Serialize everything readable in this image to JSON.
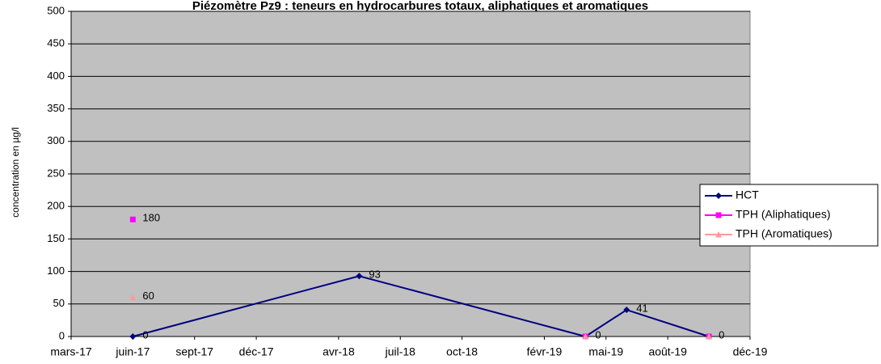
{
  "chart_data": {
    "type": "line",
    "title": "Piézomètre Pz9 : teneurs en hydrocarbures totaux, aliphatiques et aromatiques",
    "y_label": "concentration en µg/l",
    "x": [
      "2017-06",
      "2018-05",
      "2019-04",
      "2019-06",
      "2019-10"
    ],
    "series": [
      {
        "name": "HCT",
        "color": "#000080",
        "marker": "diamond",
        "values": [
          0,
          93,
          0,
          41,
          0
        ],
        "value_labels": [
          "0",
          "93",
          "0",
          "41",
          "0"
        ]
      },
      {
        "name": "TPH (Aliphatiques)",
        "color": "#ff00ff",
        "marker": "square",
        "values": [
          180,
          null,
          0,
          null,
          0
        ],
        "value_labels": [
          "180",
          null,
          null,
          null,
          null
        ]
      },
      {
        "name": "TPH (Aromatiques)",
        "color": "#ff9999",
        "marker": "triangle",
        "values": [
          60,
          null,
          0,
          null,
          0
        ],
        "value_labels": [
          "60",
          null,
          null,
          null,
          null
        ]
      }
    ],
    "xlim": [
      "2017-03",
      "2019-12"
    ],
    "xticks": [
      {
        "value": "2017-03",
        "label": "mars-17"
      },
      {
        "value": "2017-06",
        "label": "juin-17"
      },
      {
        "value": "2017-09",
        "label": "sept-17"
      },
      {
        "value": "2017-12",
        "label": "déc-17"
      },
      {
        "value": "2018-04",
        "label": "avr-18"
      },
      {
        "value": "2018-07",
        "label": "juil-18"
      },
      {
        "value": "2018-10",
        "label": "oct-18"
      },
      {
        "value": "2019-02",
        "label": "févr-19"
      },
      {
        "value": "2019-05",
        "label": "mai-19"
      },
      {
        "value": "2019-08",
        "label": "août-19"
      },
      {
        "value": "2019-12",
        "label": "déc-19"
      }
    ],
    "ylim": [
      0,
      500
    ],
    "yticks": [
      0,
      50,
      100,
      150,
      200,
      250,
      300,
      350,
      400,
      450,
      500
    ],
    "grid": true,
    "legend": "right",
    "background": "#c0c0c0"
  }
}
